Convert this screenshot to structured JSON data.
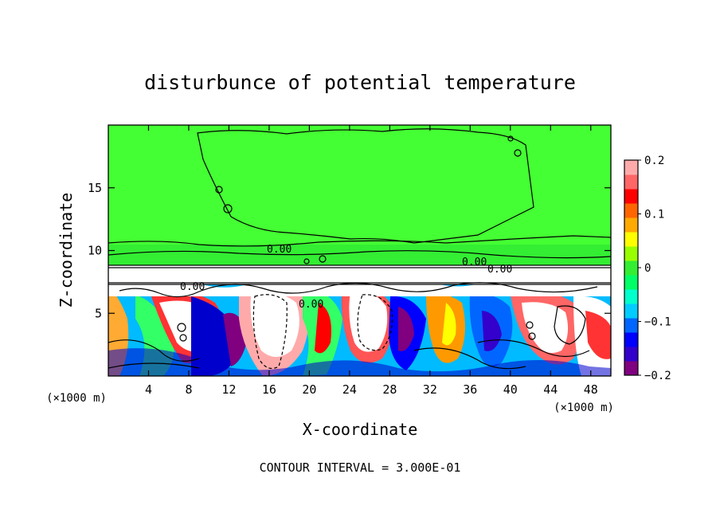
{
  "chart_data": {
    "type": "heatmap",
    "title": "disturbunce of potential temperature",
    "xlabel": "X-coordinate",
    "ylabel": "Z-coordinate",
    "x_unit": "(×1000 m)",
    "footnote": "CONTOUR INTERVAL = 3.000E-01",
    "xlim": [
      0,
      50
    ],
    "ylim": [
      0,
      20
    ],
    "x_ticks": [
      4,
      8,
      12,
      16,
      20,
      24,
      28,
      32,
      36,
      40,
      44,
      48
    ],
    "y_ticks": [
      5,
      10,
      15
    ],
    "colorbar": {
      "min": -0.2,
      "max": 0.2,
      "ticks": [
        0.2,
        0.1,
        0,
        -0.1,
        -0.2
      ],
      "tick_labels": [
        "0.2",
        "0.1",
        "0",
        "−0.1",
        "−0.2"
      ],
      "colors": [
        "#800080",
        "#3300cc",
        "#0000ff",
        "#0066ff",
        "#00ccff",
        "#00ffcc",
        "#00ff66",
        "#33ee33",
        "#99ff00",
        "#ffff00",
        "#ffaa00",
        "#ff6600",
        "#ff0000",
        "#ff6666",
        "#ffaaaa"
      ]
    },
    "contour_labels": [
      "0.00",
      "0.00",
      "0.00",
      "0.00",
      "0.00"
    ],
    "background_value": 0
  }
}
